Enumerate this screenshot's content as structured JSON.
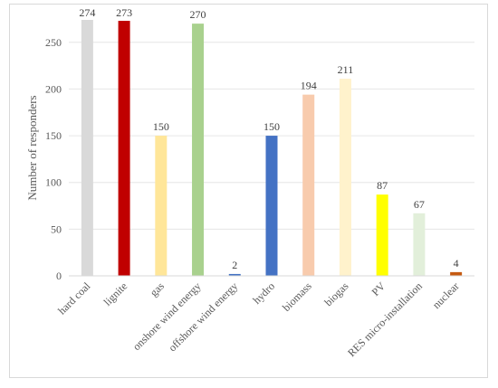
{
  "chart_data": {
    "type": "bar",
    "title": "",
    "xlabel": "",
    "ylabel": "Number of responders",
    "ylim": [
      0,
      274
    ],
    "yticks": [
      0,
      50,
      100,
      150,
      200,
      250
    ],
    "grid": "horizontal",
    "categories": [
      "hard coal",
      "lignite",
      "gas",
      "onshore wind energy",
      "offshore wind energy",
      "hydro",
      "biomass",
      "biogas",
      "PV",
      "RES micro-installation",
      "nuclear"
    ],
    "values": [
      274,
      273,
      150,
      270,
      2,
      150,
      194,
      211,
      87,
      67,
      4
    ],
    "colors": [
      "#d9d9d9",
      "#c00000",
      "#ffe699",
      "#a9d18e",
      "#4472c4",
      "#4472c4",
      "#f8cbad",
      "#fff2cc",
      "#ffff00",
      "#e2efda",
      "#c55a11"
    ]
  }
}
